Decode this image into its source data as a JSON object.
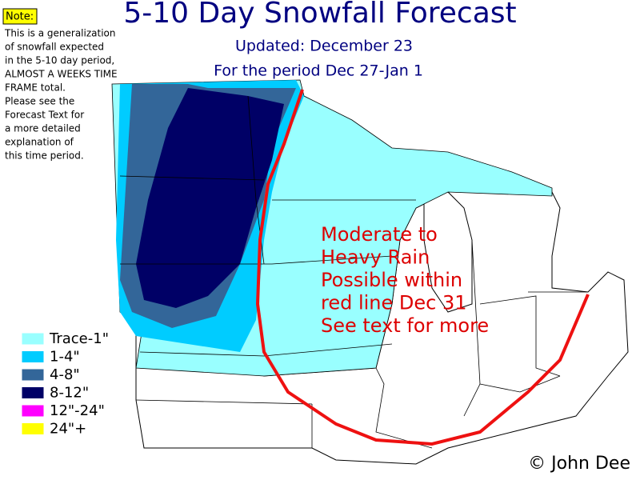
{
  "title": "5-10 Day Snowfall Forecast",
  "subtitle": [
    "Updated: December 23",
    "For the period Dec 27-Jan 1"
  ],
  "note": {
    "label": "Note:",
    "lines": [
      "This is a generalization",
      "of snowfall expected",
      "in the 5-10 day period,",
      "ALMOST A WEEKS TIME",
      "FRAME total.",
      "Please see the",
      "Forecast Text for",
      "a more detailed",
      "explanation of",
      "this time period."
    ]
  },
  "legend": [
    {
      "label": "Trace-1\"",
      "color": "#99ffff"
    },
    {
      "label": "1-4\"",
      "color": "#00ccff"
    },
    {
      "label": "4-8\"",
      "color": "#336699"
    },
    {
      "label": "8-12\"",
      "color": "#000066"
    },
    {
      "label": "12\"-24\"",
      "color": "#ff00ff"
    },
    {
      "label": "24\"+",
      "color": "#ffff00"
    }
  ],
  "annotation": {
    "lines": [
      "Moderate to",
      "Heavy Rain",
      "Possible within",
      "red line Dec 31",
      "See text for more"
    ],
    "color": "#dd0000"
  },
  "credit": "© John Dee"
}
